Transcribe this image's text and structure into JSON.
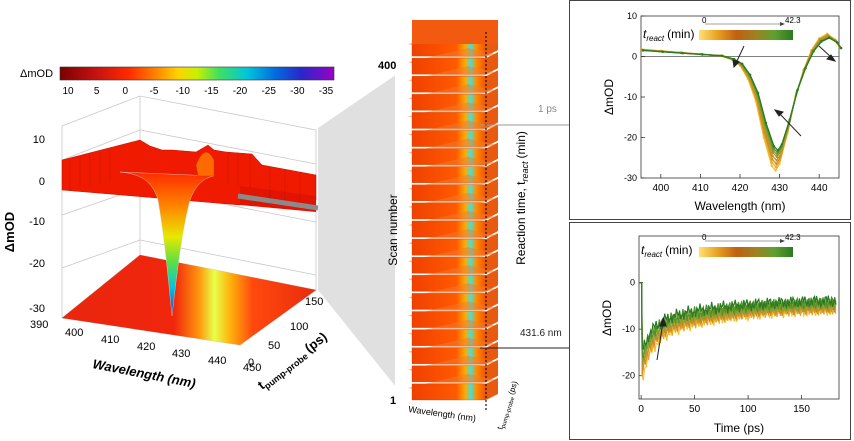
{
  "chart_data": [
    {
      "type": "surface",
      "colorbar": {
        "label": "ΔmOD",
        "ticks": [
          "10",
          "5",
          "0",
          "-5",
          "-10",
          "-15",
          "-20",
          "-25",
          "-30",
          "-35"
        ],
        "range": [
          10,
          -35
        ],
        "colors": [
          "#7a0000",
          "#c01010",
          "#ff2a00",
          "#ff7a00",
          "#ffd200",
          "#c8f000",
          "#40e060",
          "#00c8d8",
          "#0070e0",
          "#2828c8",
          "#6a00c0",
          "#9a00c8"
        ]
      },
      "zlabel": "ΔmOD",
      "zticks": [
        "10",
        "0",
        "-10",
        "-20",
        "-30"
      ],
      "zlim": [
        -30,
        10
      ],
      "xlabel": "Wavelength (nm)",
      "xticks": [
        "390",
        "400",
        "410",
        "420",
        "430",
        "440",
        "450"
      ],
      "xlim": [
        390,
        450
      ],
      "ylabel_main": "t",
      "ylabel_sub": "pump-probe",
      "ylabel_unit": "(ps)",
      "yticks": [
        "0",
        "50",
        "100",
        "150"
      ],
      "ylim": [
        0,
        150
      ]
    },
    {
      "type": "stack",
      "scan_ticks": [
        "400",
        "1"
      ],
      "scan_label": "Scan number",
      "reaction_label_main": "Reaction time, t",
      "reaction_label_sub": "react",
      "reaction_label_unit": "(min)",
      "bottom_wavelength_label": "Wavelength (nm)",
      "bottom_time_main": "t",
      "bottom_time_sub": "pump-probe",
      "bottom_time_unit": "(ps)",
      "callout_top": "1 ps",
      "callout_bottom": "431.6 nm",
      "slices": 20
    },
    {
      "type": "line",
      "xlabel": "Wavelength (nm)",
      "ylabel": "ΔmOD",
      "xticks": [
        "400",
        "410",
        "420",
        "430",
        "440"
      ],
      "xlim": [
        395,
        445
      ],
      "yticks": [
        "10",
        "0",
        "-10",
        "-20",
        "-30"
      ],
      "ylim": [
        -30,
        10
      ],
      "legend_main": "t",
      "legend_sub": "react",
      "legend_unit": "(min)",
      "legend_min": "0",
      "legend_max": "42.3",
      "gradient": [
        "#ffe070",
        "#e8a020",
        "#c06010",
        "#a08020",
        "#60a030",
        "#2a7a20"
      ],
      "baseline": [
        [
          395,
          1.8
        ],
        [
          400,
          1.4
        ],
        [
          405,
          1.0
        ],
        [
          410,
          0.6
        ],
        [
          415,
          0.2
        ],
        [
          418,
          -0.8
        ],
        [
          420,
          -2.2
        ],
        [
          422,
          -5.5
        ],
        [
          424,
          -11
        ],
        [
          426,
          -20
        ],
        [
          428,
          -27
        ],
        [
          429,
          -28.2
        ],
        [
          430,
          -26.5
        ],
        [
          432,
          -19
        ],
        [
          434,
          -10
        ],
        [
          436,
          -3.5
        ],
        [
          438,
          1.5
        ],
        [
          440,
          4.5
        ],
        [
          442,
          5.6
        ],
        [
          444,
          4.2
        ],
        [
          445,
          2.5
        ]
      ],
      "scales": [
        1.0,
        0.97,
        0.94,
        0.91,
        0.88,
        0.86,
        0.84,
        0.82
      ],
      "series_colors": [
        "#f2c030",
        "#e8a828",
        "#d88a20",
        "#c89030",
        "#a09830",
        "#80a030",
        "#50922a",
        "#2a7a20"
      ]
    },
    {
      "type": "line",
      "xlabel": "Time (ps)",
      "ylabel": "ΔmOD",
      "xticks": [
        "0",
        "50",
        "100",
        "150"
      ],
      "xlim": [
        -2,
        185
      ],
      "yticks": [
        "0",
        "-10",
        "-20"
      ],
      "ylim": [
        -25,
        10
      ],
      "legend_main": "t",
      "legend_sub": "react",
      "legend_unit": "(min)",
      "legend_min": "0",
      "legend_max": "42.3",
      "gradient": [
        "#ffe070",
        "#e8a020",
        "#c06010",
        "#a08020",
        "#60a030",
        "#2a7a20"
      ],
      "amplitudes": [
        -21.5,
        -20.5,
        -19.5,
        -18.8,
        -18.0,
        -17.2,
        -16.4,
        -15.5
      ],
      "plateaus": [
        -5.2,
        -5.0,
        -4.8,
        -4.6,
        -4.4,
        -4.1,
        -3.8,
        -3.5
      ],
      "series_colors": [
        "#f2c030",
        "#e8a828",
        "#d88a20",
        "#c89030",
        "#a09830",
        "#80a030",
        "#50922a",
        "#2a7a20"
      ]
    }
  ]
}
